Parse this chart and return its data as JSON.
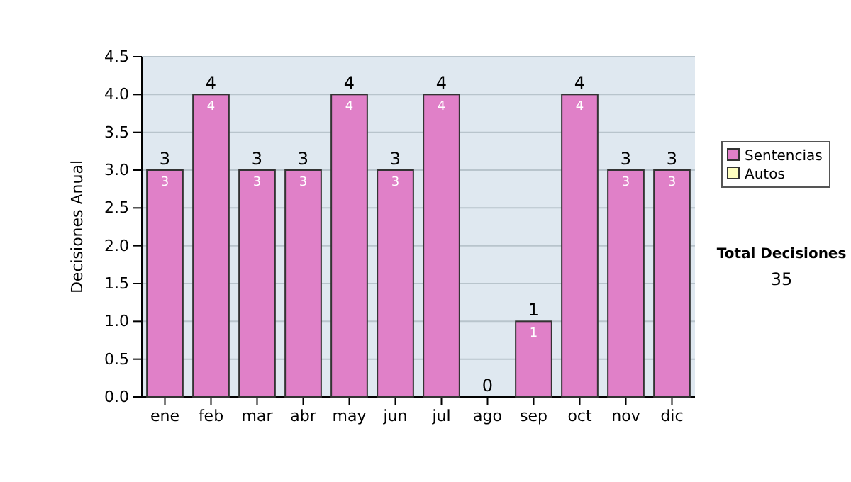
{
  "chart_data": {
    "type": "bar",
    "ylabel": "Decisiones Anual",
    "categories": [
      "ene",
      "feb",
      "mar",
      "abr",
      "may",
      "jun",
      "jul",
      "ago",
      "sep",
      "oct",
      "nov",
      "dic"
    ],
    "series": [
      {
        "name": "Sentencias",
        "color": "#e080c8",
        "values": [
          3,
          4,
          3,
          3,
          4,
          3,
          4,
          0,
          1,
          4,
          3,
          3
        ],
        "value_labels": [
          "3",
          "4",
          "3",
          "3",
          "4",
          "3",
          "4",
          null,
          "1",
          "4",
          "3",
          "3"
        ]
      },
      {
        "name": "Autos",
        "color": "#ffffc0",
        "values": [
          0,
          0,
          0,
          0,
          0,
          0,
          0,
          0,
          0,
          0,
          0,
          0
        ]
      }
    ],
    "stacked": true,
    "totals": [
      "3",
      "4",
      "3",
      "3",
      "4",
      "3",
      "4",
      "0",
      "1",
      "4",
      "3",
      "3"
    ],
    "ylim": [
      0,
      4.5
    ],
    "yticks": [
      {
        "value": 0,
        "label": "0.0"
      },
      {
        "value": 0.5,
        "label": "0.5"
      },
      {
        "value": 1,
        "label": "1.0"
      },
      {
        "value": 1.5,
        "label": "1.5"
      },
      {
        "value": 2,
        "label": "2.0"
      },
      {
        "value": 2.5,
        "label": "2.5"
      },
      {
        "value": 3,
        "label": "3.0"
      },
      {
        "value": 3.5,
        "label": "3.5"
      },
      {
        "value": 4,
        "label": "4.0"
      },
      {
        "value": 4.5,
        "label": "4.5"
      }
    ],
    "grid": "y",
    "legend": "right",
    "annotations": [
      "Total Decisiones",
      "35"
    ]
  }
}
